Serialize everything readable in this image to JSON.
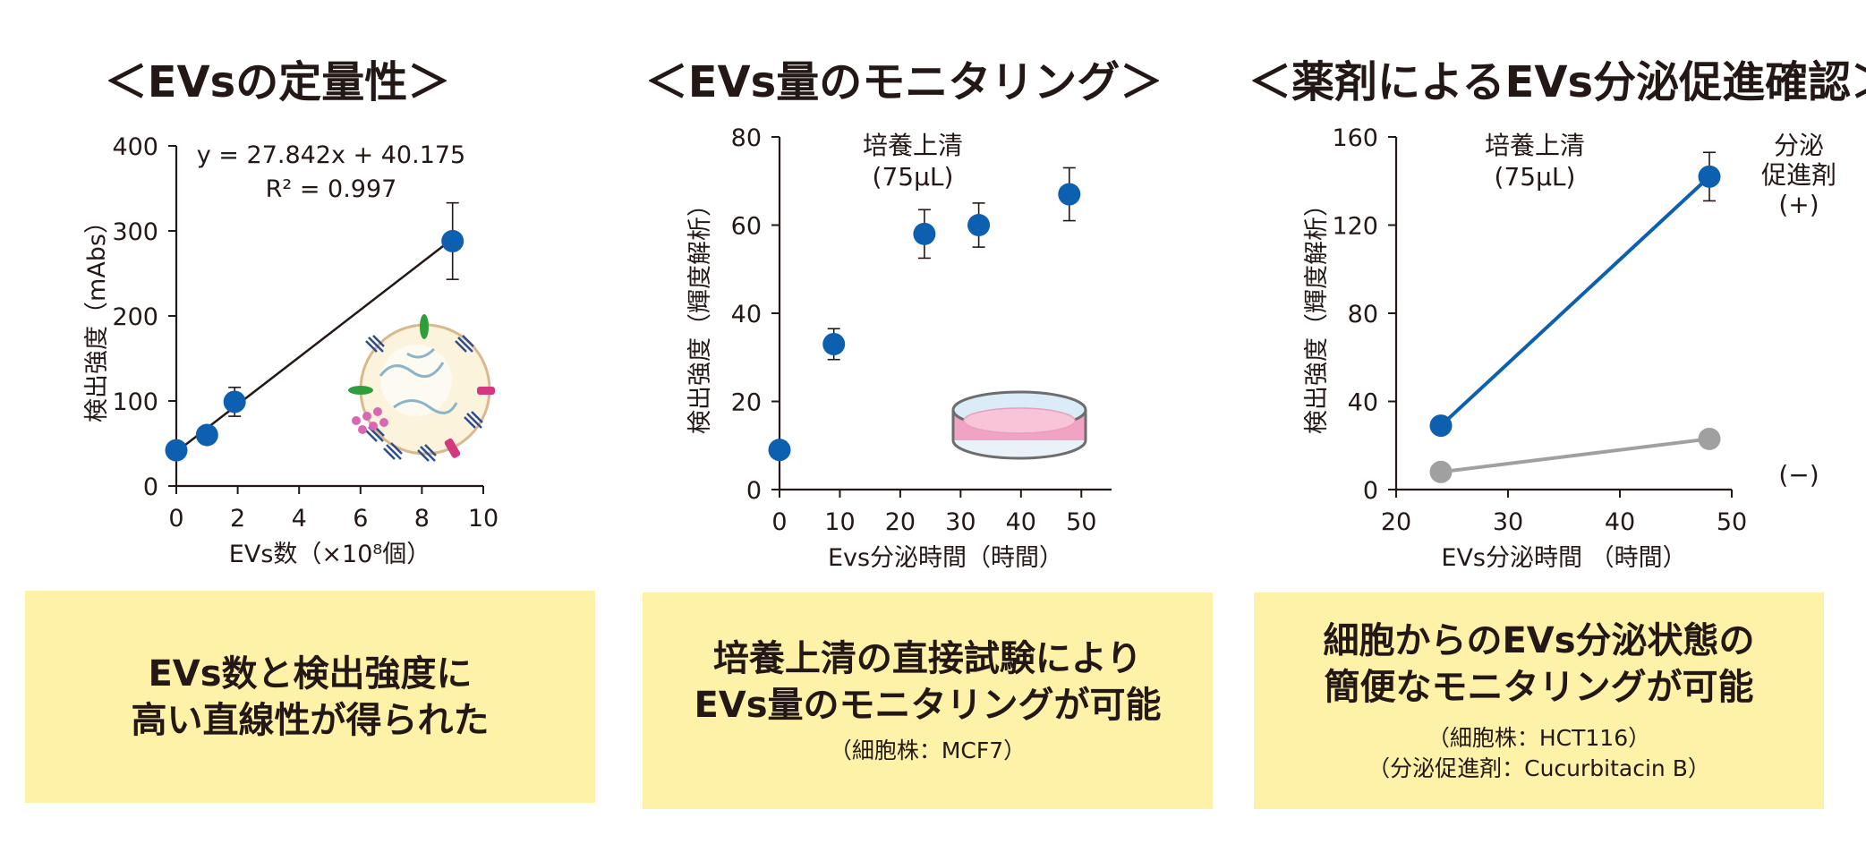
{
  "titles": {
    "p1": "＜EVsの定量性＞",
    "p2": "＜EVs量のモニタリング＞",
    "p3": "＜薬剤によるEVs分泌促進確認＞"
  },
  "chart_data": [
    {
      "type": "scatter",
      "xlabel": "EVs数（×10⁸個）",
      "ylabel": "検出強度（mAbs）",
      "xlim": [
        0,
        10
      ],
      "ylim": [
        0,
        400
      ],
      "xticks": [
        "0",
        "2",
        "4",
        "6",
        "8",
        "10"
      ],
      "yticks": [
        "0",
        "100",
        "200",
        "300",
        "400"
      ],
      "annotations": [
        "y = 27.842x + 40.175",
        "R² = 0.997"
      ],
      "trendline": {
        "slope": 27.842,
        "intercept": 40.175,
        "x_range": [
          0,
          9
        ]
      },
      "points": [
        {
          "x": 0,
          "y": 42,
          "err": 0
        },
        {
          "x": 1,
          "y": 60,
          "err": 0
        },
        {
          "x": 1.9,
          "y": 99,
          "err": 17
        },
        {
          "x": 9,
          "y": 288,
          "err": 45
        }
      ],
      "marker_color": "#0d5fb0",
      "illustration": "extracellular-vesicle"
    },
    {
      "type": "scatter",
      "xlabel": "Evs分泌時間（時間）",
      "ylabel": "検出強度（輝度解析）",
      "xlim": [
        0,
        55
      ],
      "ylim": [
        0,
        80
      ],
      "xticks": [
        "0",
        "10",
        "20",
        "30",
        "40",
        "50"
      ],
      "yticks": [
        "0",
        "20",
        "40",
        "60",
        "80"
      ],
      "annotations": [
        "培養上清",
        "(75μL)"
      ],
      "points": [
        {
          "x": 0,
          "y": 9,
          "err": 0
        },
        {
          "x": 9,
          "y": 33,
          "err": 3.5
        },
        {
          "x": 24,
          "y": 58,
          "err": 5.5
        },
        {
          "x": 33,
          "y": 60,
          "err": 5
        },
        {
          "x": 48,
          "y": 67,
          "err": 6
        }
      ],
      "marker_color": "#0d5fb0",
      "illustration": "petri-dish"
    },
    {
      "type": "line",
      "xlabel": "EVs分泌時間 （時間）",
      "ylabel": "検出強度（輝度解析）",
      "xlim": [
        20,
        50
      ],
      "ylim": [
        0,
        160
      ],
      "xticks": [
        "20",
        "30",
        "40",
        "50"
      ],
      "yticks": [
        "0",
        "40",
        "80",
        "120",
        "160"
      ],
      "annotations": [
        "培養上清",
        "(75μL)"
      ],
      "series": [
        {
          "name": "分泌 促進剤 (+)",
          "label_lines": [
            "分泌",
            "促進剤",
            "(+)"
          ],
          "color": "#0d5fb0",
          "points": [
            {
              "x": 24,
              "y": 29,
              "err": 0
            },
            {
              "x": 48,
              "y": 142,
              "err": 11
            }
          ]
        },
        {
          "name": "(−)",
          "label_lines": [
            "(−)"
          ],
          "color": "#a0a0a0",
          "points": [
            {
              "x": 24,
              "y": 8,
              "err": 0
            },
            {
              "x": 48,
              "y": 23,
              "err": 0
            }
          ]
        }
      ]
    }
  ],
  "boxes": {
    "b1": {
      "main1": "EVs数と検出強度に",
      "main2": "高い直線性が得られた",
      "sub1": "",
      "sub2": ""
    },
    "b2": {
      "main1": "培養上清の直接試験により",
      "main2": "EVs量のモニタリングが可能",
      "sub1": "（細胞株：MCF7）",
      "sub2": ""
    },
    "b3": {
      "main1": "細胞からのEVs分泌状態の",
      "main2": "簡便なモニタリングが可能",
      "sub1": "（細胞株：HCT116）",
      "sub2": "（分泌促進剤：Cucurbitacin B）"
    }
  },
  "colors": {
    "box_bg": "#fdf2a8",
    "text": "#231815",
    "blue": "#0d5fb0",
    "gray": "#a0a0a0"
  }
}
